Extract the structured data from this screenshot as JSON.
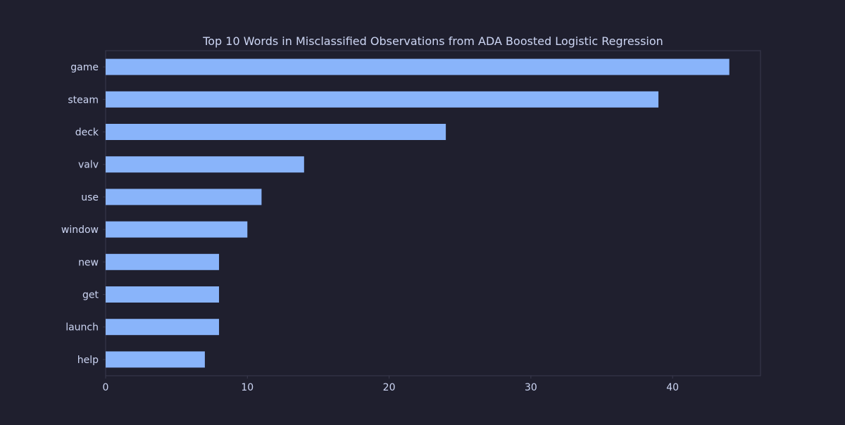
{
  "colors": {
    "background": "#1f1f2e",
    "bar": "#89b4fa",
    "text": "#cdd6f4",
    "axis": "#3a3a4e"
  },
  "chart_data": {
    "type": "bar",
    "orientation": "horizontal",
    "title": "Top 10 Words in Misclassified Observations from ADA Boosted Logistic Regression",
    "xlabel": "",
    "ylabel": "",
    "categories": [
      "game",
      "steam",
      "deck",
      "valv",
      "use",
      "window",
      "new",
      "get",
      "launch",
      "help"
    ],
    "values": [
      44,
      39,
      24,
      14,
      11,
      10,
      8,
      8,
      8,
      7
    ],
    "xlim": [
      0,
      46.2
    ],
    "xticks": [
      0,
      10,
      20,
      30,
      40
    ],
    "grid": false,
    "legend": "none"
  }
}
